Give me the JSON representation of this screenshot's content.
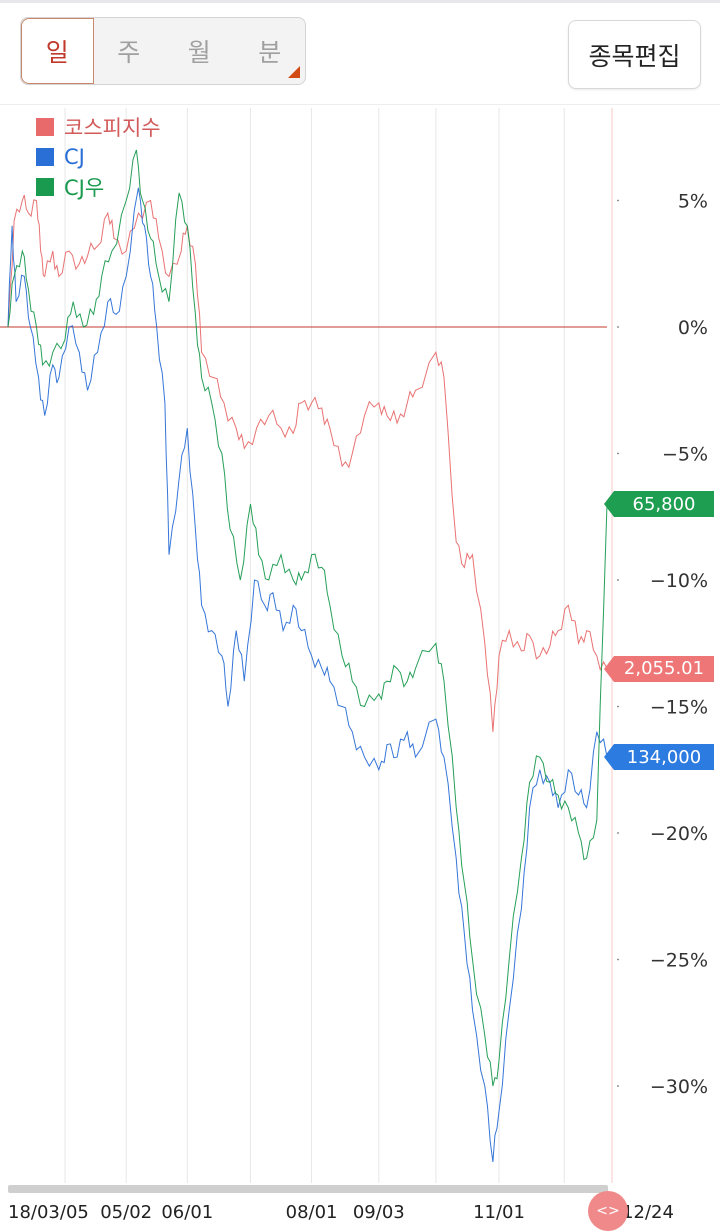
{
  "periods": [
    "일",
    "주",
    "월",
    "분"
  ],
  "active_period": "일",
  "edit_label": "종목편집",
  "scroll_glyph": "<>",
  "chart_data": {
    "type": "line",
    "ylabel_unit": "%",
    "ylim": [
      -33.5,
      9
    ],
    "y_ticks": [
      "5%",
      "0%",
      "−5%",
      "−10%",
      "−15%",
      "−20%",
      "−25%",
      "−30%"
    ],
    "y_tick_values": [
      5,
      0,
      -5,
      -10,
      -15,
      -20,
      -25,
      -30
    ],
    "x_ticks": [
      "18/03/05",
      "05/02",
      "06/01",
      "08/01",
      "09/03",
      "11/01",
      "12/24"
    ],
    "x_tick_dates": [
      "2018-03-05",
      "2018-05-02",
      "2018-06-01",
      "2018-08-01",
      "2018-09-03",
      "2018-11-01",
      "2018-12-24"
    ],
    "baseline": 0,
    "gridlines": "vertical",
    "series": [
      {
        "name": "코스피지수",
        "color": "#e86a6a",
        "last_label": "2,055.01",
        "points": [
          [
            "2018-03-05",
            0
          ],
          [
            "2018-03-08",
            4.2
          ],
          [
            "2018-03-12",
            5
          ],
          [
            "2018-03-15",
            4.5
          ],
          [
            "2018-03-19",
            5
          ],
          [
            "2018-03-21",
            3
          ],
          [
            "2018-03-23",
            2
          ],
          [
            "2018-03-27",
            3
          ],
          [
            "2018-03-30",
            2
          ],
          [
            "2018-04-04",
            3
          ],
          [
            "2018-04-09",
            2.5
          ],
          [
            "2018-04-13",
            2.8
          ],
          [
            "2018-04-18",
            3.2
          ],
          [
            "2018-04-23",
            4.5
          ],
          [
            "2018-04-26",
            3.5
          ],
          [
            "2018-05-02",
            3
          ],
          [
            "2018-05-08",
            4.5
          ],
          [
            "2018-05-14",
            5
          ],
          [
            "2018-05-18",
            3.5
          ],
          [
            "2018-05-23",
            2
          ],
          [
            "2018-05-29",
            3
          ],
          [
            "2018-06-01",
            4
          ],
          [
            "2018-06-05",
            2.5
          ],
          [
            "2018-06-08",
            -1
          ],
          [
            "2018-06-14",
            -2
          ],
          [
            "2018-06-19",
            -3
          ],
          [
            "2018-06-25",
            -4
          ],
          [
            "2018-06-29",
            -4.8
          ],
          [
            "2018-07-05",
            -4
          ],
          [
            "2018-07-11",
            -3.5
          ],
          [
            "2018-07-17",
            -4
          ],
          [
            "2018-07-23",
            -4.2
          ],
          [
            "2018-07-27",
            -3
          ],
          [
            "2018-08-01",
            -3
          ],
          [
            "2018-08-06",
            -3.2
          ],
          [
            "2018-08-10",
            -4
          ],
          [
            "2018-08-16",
            -5.5
          ],
          [
            "2018-08-21",
            -5
          ],
          [
            "2018-08-27",
            -3.5
          ],
          [
            "2018-09-03",
            -3
          ],
          [
            "2018-09-07",
            -3.5
          ],
          [
            "2018-09-12",
            -3.8
          ],
          [
            "2018-09-17",
            -3
          ],
          [
            "2018-09-21",
            -2.5
          ],
          [
            "2018-10-01",
            -1
          ],
          [
            "2018-10-05",
            -2
          ],
          [
            "2018-10-11",
            -8.5
          ],
          [
            "2018-10-15",
            -9.5
          ],
          [
            "2018-10-19",
            -9
          ],
          [
            "2018-10-25",
            -12.5
          ],
          [
            "2018-10-29",
            -16
          ],
          [
            "2018-11-01",
            -13
          ],
          [
            "2018-11-06",
            -12
          ],
          [
            "2018-11-12",
            -12.8
          ],
          [
            "2018-11-16",
            -12.2
          ],
          [
            "2018-11-21",
            -13
          ],
          [
            "2018-11-26",
            -12.6
          ],
          [
            "2018-11-30",
            -12
          ],
          [
            "2018-12-05",
            -11
          ],
          [
            "2018-12-10",
            -12.5
          ],
          [
            "2018-12-14",
            -12
          ],
          [
            "2018-12-19",
            -13
          ],
          [
            "2018-12-24",
            -13.5
          ]
        ]
      },
      {
        "name": "CJ",
        "color": "#2a6fd6",
        "last_label": "134,000",
        "points": [
          [
            "2018-03-05",
            0
          ],
          [
            "2018-03-07",
            4
          ],
          [
            "2018-03-09",
            1
          ],
          [
            "2018-03-13",
            2
          ],
          [
            "2018-03-16",
            0
          ],
          [
            "2018-03-20",
            -2
          ],
          [
            "2018-03-23",
            -3.5
          ],
          [
            "2018-03-27",
            -1.5
          ],
          [
            "2018-03-30",
            -2
          ],
          [
            "2018-04-04",
            0
          ],
          [
            "2018-04-09",
            -1
          ],
          [
            "2018-04-13",
            -2.5
          ],
          [
            "2018-04-18",
            -1
          ],
          [
            "2018-04-23",
            1
          ],
          [
            "2018-04-27",
            0.5
          ],
          [
            "2018-05-02",
            2
          ],
          [
            "2018-05-08",
            5.5
          ],
          [
            "2018-05-11",
            4
          ],
          [
            "2018-05-14",
            2
          ],
          [
            "2018-05-17",
            0
          ],
          [
            "2018-05-21",
            -3
          ],
          [
            "2018-05-23",
            -9
          ],
          [
            "2018-05-28",
            -6
          ],
          [
            "2018-06-01",
            -4
          ],
          [
            "2018-06-05",
            -8
          ],
          [
            "2018-06-08",
            -11
          ],
          [
            "2018-06-13",
            -12
          ],
          [
            "2018-06-18",
            -13
          ],
          [
            "2018-06-21",
            -15
          ],
          [
            "2018-06-25",
            -12
          ],
          [
            "2018-06-29",
            -14
          ],
          [
            "2018-07-04",
            -10
          ],
          [
            "2018-07-09",
            -11
          ],
          [
            "2018-07-13",
            -10.5
          ],
          [
            "2018-07-18",
            -12
          ],
          [
            "2018-07-23",
            -11
          ],
          [
            "2018-07-27",
            -12
          ],
          [
            "2018-08-01",
            -13
          ],
          [
            "2018-08-06",
            -13.5
          ],
          [
            "2018-08-10",
            -14
          ],
          [
            "2018-08-16",
            -15
          ],
          [
            "2018-08-21",
            -16
          ],
          [
            "2018-08-27",
            -17
          ],
          [
            "2018-09-03",
            -17.5
          ],
          [
            "2018-09-07",
            -16.5
          ],
          [
            "2018-09-12",
            -17
          ],
          [
            "2018-09-17",
            -16
          ],
          [
            "2018-09-21",
            -17
          ],
          [
            "2018-10-01",
            -15.5
          ],
          [
            "2018-10-05",
            -17
          ],
          [
            "2018-10-11",
            -21
          ],
          [
            "2018-10-15",
            -24
          ],
          [
            "2018-10-19",
            -27
          ],
          [
            "2018-10-25",
            -30
          ],
          [
            "2018-10-29",
            -33
          ],
          [
            "2018-11-01",
            -31
          ],
          [
            "2018-11-06",
            -27
          ],
          [
            "2018-11-12",
            -23
          ],
          [
            "2018-11-16",
            -19
          ],
          [
            "2018-11-21",
            -17.5
          ],
          [
            "2018-11-26",
            -18
          ],
          [
            "2018-11-30",
            -19
          ],
          [
            "2018-12-05",
            -17.5
          ],
          [
            "2018-12-10",
            -18.5
          ],
          [
            "2018-12-14",
            -19
          ],
          [
            "2018-12-19",
            -16
          ],
          [
            "2018-12-24",
            -17
          ]
        ]
      },
      {
        "name": "CJ우",
        "color": "#1a9a4e",
        "last_label": "65,800",
        "points": [
          [
            "2018-03-05",
            0
          ],
          [
            "2018-03-08",
            2
          ],
          [
            "2018-03-12",
            3
          ],
          [
            "2018-03-15",
            1.5
          ],
          [
            "2018-03-19",
            0
          ],
          [
            "2018-03-22",
            -1.5
          ],
          [
            "2018-03-27",
            -1
          ],
          [
            "2018-04-02",
            -0.5
          ],
          [
            "2018-04-06",
            1
          ],
          [
            "2018-04-11",
            0
          ],
          [
            "2018-04-16",
            0.5
          ],
          [
            "2018-04-20",
            2
          ],
          [
            "2018-04-25",
            3
          ],
          [
            "2018-05-02",
            5
          ],
          [
            "2018-05-07",
            7
          ],
          [
            "2018-05-10",
            5
          ],
          [
            "2018-05-14",
            3.5
          ],
          [
            "2018-05-18",
            2
          ],
          [
            "2018-05-23",
            1
          ],
          [
            "2018-05-28",
            5.3
          ],
          [
            "2018-06-01",
            4
          ],
          [
            "2018-06-05",
            0.5
          ],
          [
            "2018-06-08",
            -2
          ],
          [
            "2018-06-13",
            -3
          ],
          [
            "2018-06-18",
            -5
          ],
          [
            "2018-06-22",
            -8
          ],
          [
            "2018-06-27",
            -10
          ],
          [
            "2018-07-02",
            -7
          ],
          [
            "2018-07-06",
            -9
          ],
          [
            "2018-07-11",
            -10
          ],
          [
            "2018-07-17",
            -9
          ],
          [
            "2018-07-23",
            -10
          ],
          [
            "2018-07-27",
            -10
          ],
          [
            "2018-08-01",
            -9
          ],
          [
            "2018-08-06",
            -9.5
          ],
          [
            "2018-08-10",
            -11
          ],
          [
            "2018-08-16",
            -13
          ],
          [
            "2018-08-21",
            -14
          ],
          [
            "2018-08-27",
            -15
          ],
          [
            "2018-09-03",
            -14.5
          ],
          [
            "2018-09-07",
            -14
          ],
          [
            "2018-09-12",
            -13.5
          ],
          [
            "2018-09-17",
            -14
          ],
          [
            "2018-09-21",
            -13.5
          ],
          [
            "2018-10-01",
            -12.5
          ],
          [
            "2018-10-05",
            -14
          ],
          [
            "2018-10-11",
            -19
          ],
          [
            "2018-10-15",
            -22
          ],
          [
            "2018-10-19",
            -25
          ],
          [
            "2018-10-25",
            -28
          ],
          [
            "2018-10-29",
            -30
          ],
          [
            "2018-11-01",
            -29
          ],
          [
            "2018-11-06",
            -25
          ],
          [
            "2018-11-12",
            -21
          ],
          [
            "2018-11-16",
            -18
          ],
          [
            "2018-11-21",
            -17
          ],
          [
            "2018-11-26",
            -18
          ],
          [
            "2018-11-30",
            -18.5
          ],
          [
            "2018-12-05",
            -19
          ],
          [
            "2018-12-10",
            -20
          ],
          [
            "2018-12-14",
            -21
          ],
          [
            "2018-12-19",
            -19.5
          ],
          [
            "2018-12-24",
            -7
          ]
        ]
      }
    ]
  }
}
